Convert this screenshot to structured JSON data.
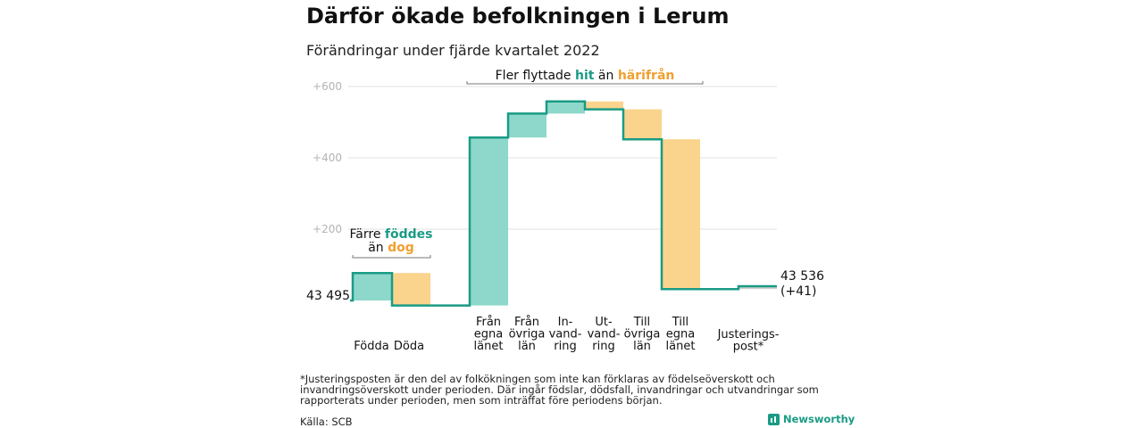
{
  "header": {
    "title": "Därför ökade befolkningen i Lerum",
    "subtitle": "Förändringar under fjärde kvartalet 2022"
  },
  "colors": {
    "in": "#8dd8cb",
    "out": "#fad48c",
    "line": "#1a9b85",
    "adjust": "#cfcfcf",
    "teal_text": "#1a9b85",
    "orange_text": "#f0a030"
  },
  "chart_data": {
    "type": "waterfall",
    "start_label": "43 495",
    "end_label": "43 536",
    "end_change": "(+41)",
    "y_ticks": [
      "+200",
      "+400",
      "+600"
    ],
    "tick_values": [
      200,
      400,
      600
    ],
    "ylim": [
      -15,
      600
    ],
    "series": [
      {
        "category": "Födda",
        "label": [
          "Födda"
        ],
        "change": 77,
        "kind": "in"
      },
      {
        "category": "Döda",
        "label": [
          "Döda"
        ],
        "change": -91,
        "kind": "out"
      },
      {
        "category": "Från egna länet",
        "label": [
          "Från",
          "egna",
          "länet"
        ],
        "change": 471,
        "kind": "in"
      },
      {
        "category": "Från övriga län",
        "label": [
          "Från",
          "övriga",
          "län"
        ],
        "change": 67,
        "kind": "in"
      },
      {
        "category": "Invandring",
        "label": [
          "In-",
          "vand-",
          "ring"
        ],
        "change": 34,
        "kind": "in"
      },
      {
        "category": "Utvandring",
        "label": [
          "Ut-",
          "vand-",
          "ring"
        ],
        "change": -22,
        "kind": "out"
      },
      {
        "category": "Till övriga län",
        "label": [
          "Till",
          "övriga",
          "län"
        ],
        "change": -84,
        "kind": "out"
      },
      {
        "category": "Till egna länet",
        "label": [
          "Till",
          "egna",
          "länet"
        ],
        "change": -420,
        "kind": "out"
      },
      {
        "category": "Justeringspost*",
        "label": [
          "Justerings-",
          "post*"
        ],
        "change": 8,
        "kind": "adjust"
      }
    ],
    "annotations": [
      {
        "text_parts": [
          {
            "text": "Färre ",
            "color": "#111111",
            "bold": false
          },
          {
            "text": "föddes",
            "color": "#1a9b85",
            "bold": true
          }
        ],
        "text_parts_line2": [
          {
            "text": "än ",
            "color": "#111111",
            "bold": false
          },
          {
            "text": "dog",
            "color": "#f0a030",
            "bold": true
          }
        ]
      },
      {
        "text_parts": [
          {
            "text": "Fler flyttade ",
            "color": "#111111",
            "bold": false
          },
          {
            "text": "hit",
            "color": "#1a9b85",
            "bold": true
          },
          {
            "text": " än ",
            "color": "#111111",
            "bold": false
          },
          {
            "text": "härifrån",
            "color": "#f0a030",
            "bold": true
          }
        ]
      }
    ]
  },
  "footer": {
    "footnote": "*Justeringsposten är den del av folkökningen som inte kan förklaras av födelseöverskott och invandringsöverskott under perioden. Där ingår födslar, dödsfall, invandringar och utvandringar som rapporterats under perioden, men som inträffat före periodens början.",
    "source": "Källa: SCB",
    "logo": "Newsworthy"
  }
}
